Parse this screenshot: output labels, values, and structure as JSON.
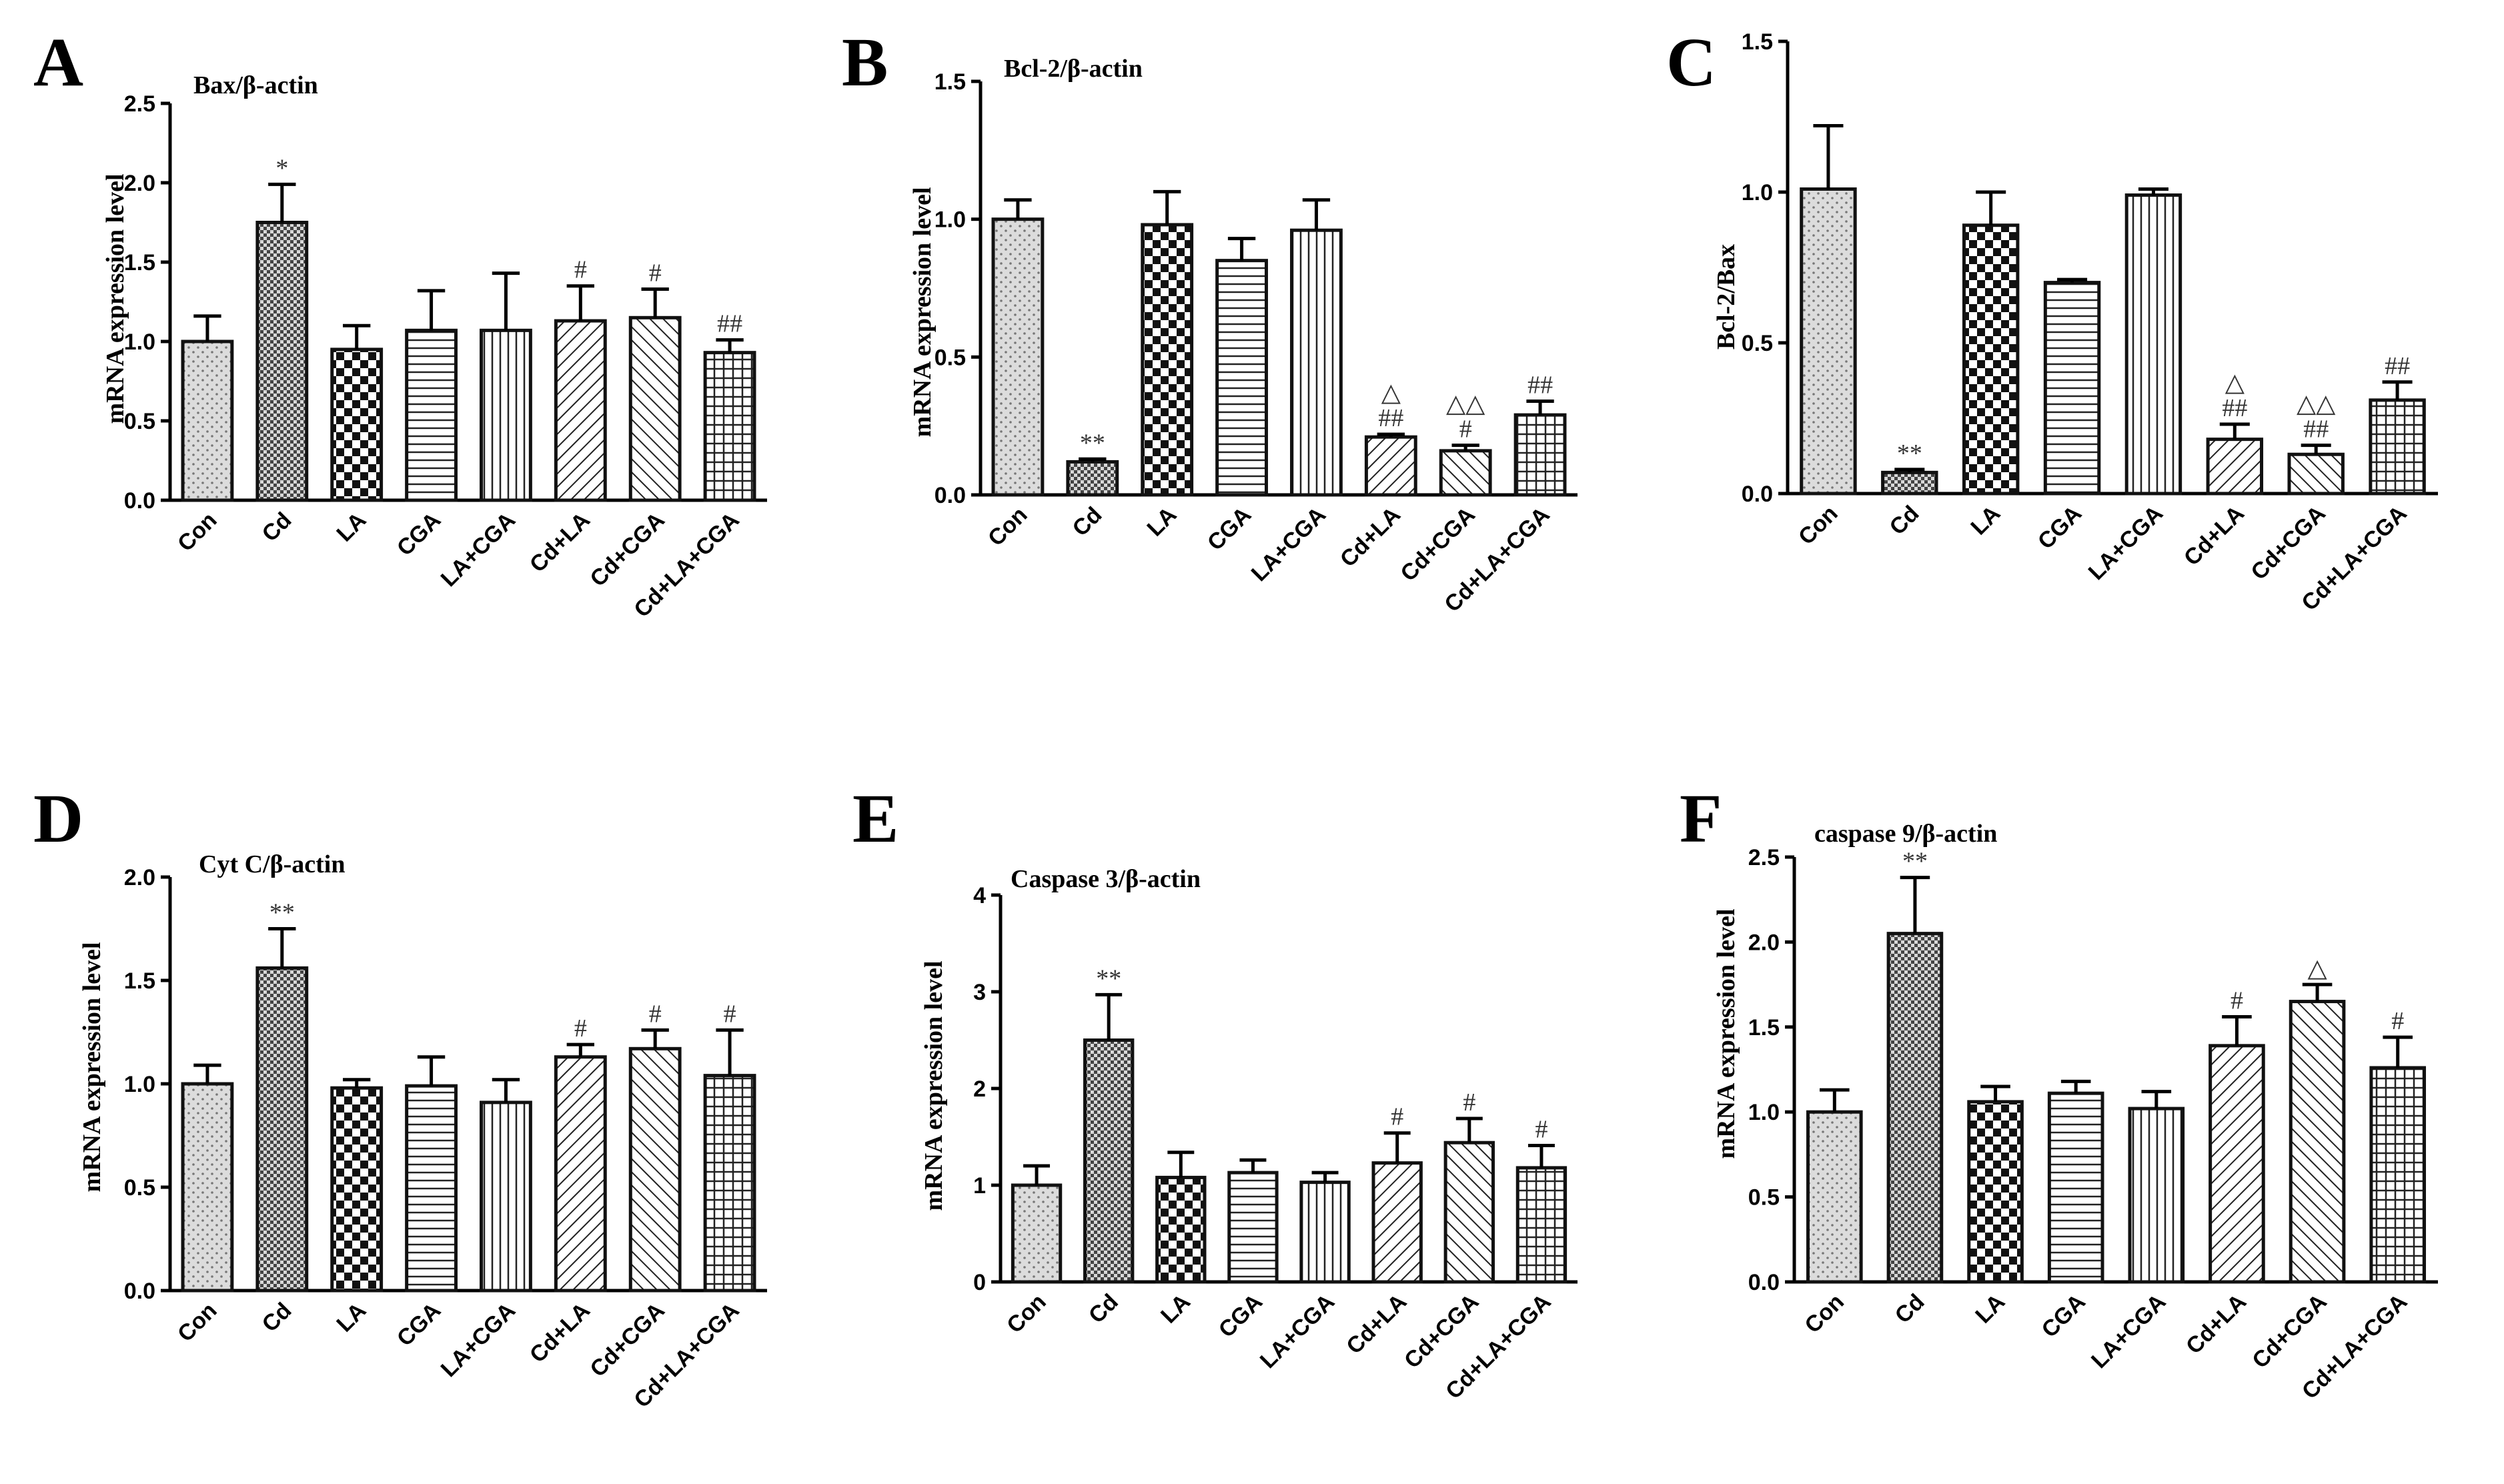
{
  "figure": {
    "panels": [
      "A",
      "B",
      "C",
      "D",
      "E",
      "F"
    ]
  },
  "chart_data": [
    {
      "panel": "A",
      "type": "bar",
      "title": "Bax/β-actin",
      "ylabel": "mRNA expression level",
      "xlabel": "",
      "ylim": [
        0,
        2.5
      ],
      "yticks": [
        "0.0",
        "0.5",
        "1.0",
        "1.5",
        "2.0",
        "2.5"
      ],
      "categories": [
        "Con",
        "Cd",
        "LA",
        "CGA",
        "LA+CGA",
        "Cd+LA",
        "Cd+CGA",
        "Cd+LA+CGA"
      ],
      "values": [
        1.0,
        1.75,
        0.95,
        1.07,
        1.07,
        1.13,
        1.15,
        0.93
      ],
      "errors": [
        0.16,
        0.24,
        0.15,
        0.25,
        0.36,
        0.22,
        0.18,
        0.08
      ],
      "annotations": [
        "",
        "*",
        "",
        "",
        "",
        "#",
        "#",
        "##"
      ],
      "annotations2": [
        "",
        "",
        "",
        "",
        "",
        "",
        "",
        ""
      ]
    },
    {
      "panel": "B",
      "type": "bar",
      "title": "Bcl-2/β-actin",
      "ylabel": "mRNA expression level",
      "xlabel": "",
      "ylim": [
        0,
        1.5
      ],
      "yticks": [
        "0.0",
        "0.5",
        "1.0",
        "1.5"
      ],
      "categories": [
        "Con",
        "Cd",
        "LA",
        "CGA",
        "LA+CGA",
        "Cd+LA",
        "Cd+CGA",
        "Cd+LA+CGA"
      ],
      "values": [
        1.0,
        0.12,
        0.98,
        0.85,
        0.96,
        0.21,
        0.16,
        0.29
      ],
      "errors": [
        0.07,
        0.01,
        0.12,
        0.08,
        0.11,
        0.01,
        0.02,
        0.05
      ],
      "annotations": [
        "",
        "**",
        "",
        "",
        "",
        "##",
        "#",
        "##"
      ],
      "annotations2": [
        "",
        "",
        "",
        "",
        "",
        "△",
        "△△",
        ""
      ]
    },
    {
      "panel": "C",
      "type": "bar",
      "title": "",
      "ylabel": "Bcl-2/Bax",
      "xlabel": "",
      "ylim": [
        0,
        1.5
      ],
      "yticks": [
        "0.0",
        "0.5",
        "1.0",
        "1.5"
      ],
      "categories": [
        "Con",
        "Cd",
        "LA",
        "CGA",
        "LA+CGA",
        "Cd+LA",
        "Cd+CGA",
        "Cd+LA+CGA"
      ],
      "values": [
        1.01,
        0.07,
        0.89,
        0.7,
        0.99,
        0.18,
        0.13,
        0.31
      ],
      "errors": [
        0.21,
        0.01,
        0.11,
        0.01,
        0.02,
        0.05,
        0.03,
        0.06
      ],
      "annotations": [
        "",
        "**",
        "",
        "",
        "",
        "##",
        "##",
        "##"
      ],
      "annotations2": [
        "",
        "",
        "",
        "",
        "",
        "△",
        "△△",
        ""
      ]
    },
    {
      "panel": "D",
      "type": "bar",
      "title": "Cyt C/β-actin",
      "ylabel": "mRNA expression level",
      "xlabel": "",
      "ylim": [
        0,
        2.0
      ],
      "yticks": [
        "0.0",
        "0.5",
        "1.0",
        "1.5",
        "2.0"
      ],
      "categories": [
        "Con",
        "Cd",
        "LA",
        "CGA",
        "LA+CGA",
        "Cd+LA",
        "Cd+CGA",
        "Cd+LA+CGA"
      ],
      "values": [
        1.0,
        1.56,
        0.98,
        0.99,
        0.91,
        1.13,
        1.17,
        1.04
      ],
      "errors": [
        0.09,
        0.19,
        0.04,
        0.14,
        0.11,
        0.06,
        0.09,
        0.22
      ],
      "annotations": [
        "",
        "**",
        "",
        "",
        "",
        "#",
        "#",
        "#"
      ],
      "annotations2": [
        "",
        "",
        "",
        "",
        "",
        "",
        "",
        ""
      ]
    },
    {
      "panel": "E",
      "type": "bar",
      "title": "Caspase 3/β-actin",
      "ylabel": "mRNA expression level",
      "xlabel": "",
      "ylim": [
        0,
        4
      ],
      "yticks": [
        "0",
        "1",
        "2",
        "3",
        "4"
      ],
      "categories": [
        "Con",
        "Cd",
        "LA",
        "CGA",
        "LA+CGA",
        "Cd+LA",
        "Cd+CGA",
        "Cd+LA+CGA"
      ],
      "values": [
        1.0,
        2.5,
        1.08,
        1.13,
        1.03,
        1.23,
        1.44,
        1.18
      ],
      "errors": [
        0.2,
        0.47,
        0.26,
        0.13,
        0.1,
        0.31,
        0.25,
        0.23
      ],
      "annotations": [
        "",
        "**",
        "",
        "",
        "",
        "#",
        "#",
        "#"
      ],
      "annotations2": [
        "",
        "",
        "",
        "",
        "",
        "",
        "",
        ""
      ]
    },
    {
      "panel": "F",
      "type": "bar",
      "title": "caspase 9/β-actin",
      "ylabel": "mRNA expression level",
      "xlabel": "",
      "ylim": [
        0,
        2.5
      ],
      "yticks": [
        "0.0",
        "0.5",
        "1.0",
        "1.5",
        "2.0",
        "2.5"
      ],
      "categories": [
        "Con",
        "Cd",
        "LA",
        "CGA",
        "LA+CGA",
        "Cd+LA",
        "Cd+CGA",
        "Cd+LA+CGA"
      ],
      "values": [
        1.0,
        2.05,
        1.06,
        1.11,
        1.02,
        1.39,
        1.65,
        1.26
      ],
      "errors": [
        0.13,
        0.33,
        0.09,
        0.07,
        0.1,
        0.17,
        0.1,
        0.18
      ],
      "annotations": [
        "",
        "**",
        "",
        "",
        "",
        "#",
        "△",
        "#"
      ],
      "annotations2": [
        "",
        "",
        "",
        "",
        "",
        "",
        "",
        ""
      ]
    }
  ]
}
